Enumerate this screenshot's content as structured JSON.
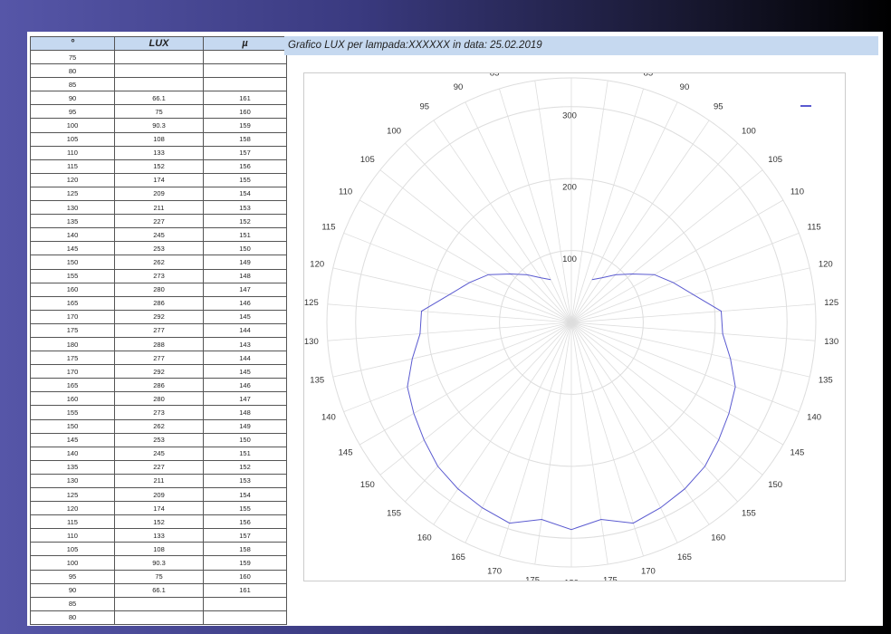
{
  "table": {
    "headers": [
      "°",
      "LUX",
      "µ"
    ],
    "rows": [
      [
        75,
        null,
        null
      ],
      [
        80,
        null,
        null
      ],
      [
        85,
        null,
        null
      ],
      [
        90,
        66.1,
        161
      ],
      [
        95,
        75,
        160
      ],
      [
        100,
        90.3,
        159
      ],
      [
        105,
        108,
        158
      ],
      [
        110,
        133,
        157
      ],
      [
        115,
        152,
        156
      ],
      [
        120,
        174,
        155
      ],
      [
        125,
        209,
        154
      ],
      [
        130,
        211,
        153
      ],
      [
        135,
        227,
        152
      ],
      [
        140,
        245,
        151
      ],
      [
        145,
        253,
        150
      ],
      [
        150,
        262,
        149
      ],
      [
        155,
        273,
        148
      ],
      [
        160,
        280,
        147
      ],
      [
        165,
        286,
        146
      ],
      [
        170,
        292,
        145
      ],
      [
        175,
        277,
        144
      ],
      [
        180,
        288,
        143
      ],
      [
        175,
        277,
        144
      ],
      [
        170,
        292,
        145
      ],
      [
        165,
        286,
        146
      ],
      [
        160,
        280,
        147
      ],
      [
        155,
        273,
        148
      ],
      [
        150,
        262,
        149
      ],
      [
        145,
        253,
        150
      ],
      [
        140,
        245,
        151
      ],
      [
        135,
        227,
        152
      ],
      [
        130,
        211,
        153
      ],
      [
        125,
        209,
        154
      ],
      [
        120,
        174,
        155
      ],
      [
        115,
        152,
        156
      ],
      [
        110,
        133,
        157
      ],
      [
        105,
        108,
        158
      ],
      [
        100,
        90.3,
        159
      ],
      [
        95,
        75,
        160
      ],
      [
        90,
        66.1,
        161
      ],
      [
        85,
        null,
        null
      ],
      [
        80,
        null,
        null
      ]
    ]
  },
  "chart_data": {
    "type": "polar",
    "title": "Grafico LUX per lampada:XXXXXX in data: 25.02.2019",
    "categories": [
      75,
      80,
      85,
      90,
      95,
      100,
      105,
      110,
      115,
      120,
      125,
      130,
      135,
      140,
      145,
      150,
      155,
      160,
      165,
      170,
      175,
      180,
      175,
      170,
      165,
      160,
      155,
      150,
      145,
      140,
      135,
      130,
      125,
      120,
      115,
      110,
      105,
      100,
      95,
      90,
      85,
      80
    ],
    "series": [
      {
        "color": "#5a5ad0",
        "values": [
          null,
          null,
          null,
          66.1,
          75,
          90.3,
          108,
          133,
          152,
          174,
          209,
          211,
          227,
          245,
          253,
          262,
          273,
          280,
          286,
          292,
          277,
          288,
          277,
          292,
          286,
          280,
          273,
          262,
          253,
          245,
          227,
          211,
          209,
          174,
          152,
          133,
          108,
          90.3,
          75,
          66.1,
          null,
          null
        ]
      }
    ],
    "rlim": [
      0,
      340
    ],
    "rticks": [
      100,
      200,
      300
    ],
    "grid": true
  }
}
